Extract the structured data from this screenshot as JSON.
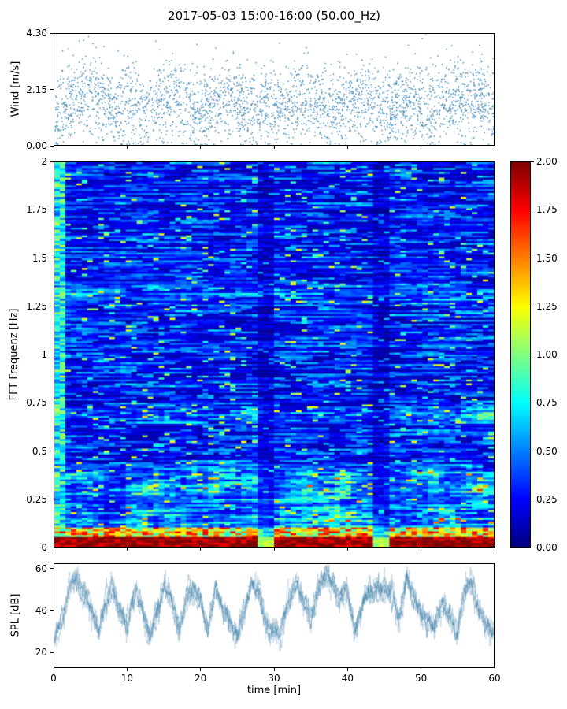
{
  "title": "2017-05-03 15:00-16:00 (50.00_Hz)",
  "colors": {
    "series": "#2e7bb0",
    "axis": "#000000",
    "background": "#ffffff"
  },
  "chart_data": [
    {
      "id": "wind",
      "type": "scatter",
      "ylabel": "Wind [m/s]",
      "xlim": [
        0,
        60
      ],
      "ylim": [
        0.0,
        4.3
      ],
      "yticks": [
        "4.30",
        "2.15",
        "0.00"
      ],
      "ytick_values": [
        4.3,
        2.15,
        0.0
      ],
      "n_points": 3000,
      "marker": "point",
      "color": "#2e7bb0",
      "y_std": 0.75,
      "envelope_x": [
        0,
        2,
        4,
        6,
        8,
        10,
        12,
        14,
        16,
        18,
        20,
        22,
        24,
        26,
        28,
        30,
        32,
        34,
        36,
        38,
        40,
        42,
        44,
        46,
        48,
        50,
        52,
        54,
        56,
        58,
        60
      ],
      "envelope_mean": [
        1.1,
        1.6,
        2.1,
        1.7,
        1.4,
        1.6,
        1.3,
        1.7,
        2.0,
        1.5,
        1.2,
        1.6,
        1.9,
        1.6,
        1.3,
        1.7,
        1.5,
        1.8,
        1.5,
        1.3,
        1.6,
        1.9,
        1.5,
        1.3,
        1.7,
        1.6,
        1.4,
        1.8,
        1.6,
        1.9,
        1.4
      ],
      "description": "dense scatter of wind speed samples over one hour, mostly 0.3-3.0 m/s with gusts reaching 4.3"
    },
    {
      "id": "spectrogram",
      "type": "heatmap",
      "ylabel": "FFT Frequenz [Hz]",
      "xlim": [
        0,
        60
      ],
      "ylim": [
        0,
        2
      ],
      "yticks": [
        "2",
        "1.75",
        "1.5",
        "1.25",
        "1",
        "0.75",
        "0.5",
        "0.25",
        "0"
      ],
      "ytick_values": [
        2,
        1.75,
        1.5,
        1.25,
        1,
        0.75,
        0.5,
        0.25,
        0
      ],
      "colormap": "jet",
      "clim": [
        0,
        2
      ],
      "colorbar_ticks": [
        "2.00",
        "1.75",
        "1.50",
        "1.25",
        "1.00",
        "0.75",
        "0.50",
        "0.25",
        "0.00"
      ],
      "colorbar_tick_values": [
        2,
        1.75,
        1.5,
        1.25,
        1,
        0.75,
        0.5,
        0.25,
        0
      ],
      "background_level": 0.3,
      "bands": [
        {
          "freq": 0.08,
          "width": 0.04,
          "intensity": 1.2
        },
        {
          "freq": 0.14,
          "width": 0.04,
          "intensity": 0.9
        },
        {
          "freq": 0.21,
          "width": 0.05,
          "intensity": 0.7
        },
        {
          "freq": 0.3,
          "width": 0.05,
          "intensity": 1.1
        },
        {
          "freq": 0.38,
          "width": 0.04,
          "intensity": 0.8
        },
        {
          "freq": 0.68,
          "width": 0.04,
          "intensity": 0.9
        },
        {
          "freq": 1.32,
          "width": 0.05,
          "intensity": 0.55
        }
      ],
      "dark_columns_min": [
        28.8,
        44.6
      ],
      "description": "mostly blue background (0.1-0.6) with cyan speckles, strong red band below 0.1 Hz, intermittent yellow/red streaks near 0.3 Hz and 0.68 Hz, faint cyan patches near 1.3 Hz"
    },
    {
      "id": "spl",
      "type": "line",
      "ylabel": "SPL [dB]",
      "xlabel": "time [min]",
      "xlim": [
        0,
        60
      ],
      "ylim": [
        12.5,
        62.5
      ],
      "yticks": [
        "60",
        "40",
        "20"
      ],
      "ytick_values": [
        60,
        40,
        20
      ],
      "xticks": [
        "0",
        "10",
        "20",
        "30",
        "40",
        "50",
        "60"
      ],
      "xtick_values": [
        0,
        10,
        20,
        30,
        40,
        50,
        60
      ],
      "color": "#3a7ca8",
      "x": [
        0,
        1,
        2,
        3,
        4,
        5,
        6,
        7,
        8,
        9,
        10,
        11,
        12,
        13,
        14,
        15,
        16,
        17,
        18,
        19,
        20,
        21,
        22,
        23,
        24,
        25,
        26,
        27,
        28,
        29,
        30,
        31,
        32,
        33,
        34,
        35,
        36,
        37,
        38,
        39,
        40,
        41,
        42,
        43,
        44,
        45,
        46,
        47,
        48,
        49,
        50,
        51,
        52,
        53,
        54,
        55,
        56,
        57,
        58,
        59,
        60
      ],
      "values": [
        25,
        33,
        50,
        55,
        48,
        42,
        30,
        45,
        50,
        40,
        33,
        50,
        42,
        27,
        40,
        52,
        45,
        30,
        45,
        50,
        47,
        30,
        50,
        42,
        33,
        28,
        40,
        55,
        50,
        32,
        28,
        30,
        45,
        55,
        45,
        38,
        50,
        57,
        52,
        45,
        50,
        30,
        42,
        50,
        50,
        50,
        48,
        35,
        55,
        48,
        40,
        35,
        33,
        45,
        38,
        28,
        50,
        55,
        40,
        33,
        30
      ]
    }
  ]
}
